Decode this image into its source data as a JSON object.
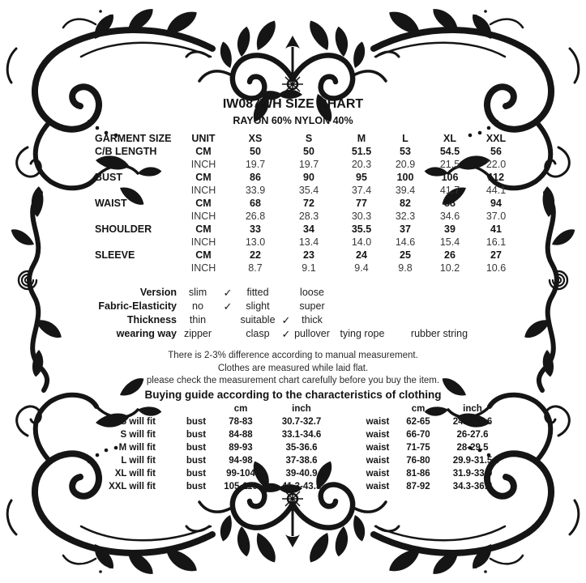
{
  "title": "IW087WH SIZE CHART",
  "subtitle": "RAYON 60% NYLON 40%",
  "size_table": {
    "columns": [
      "GARMENT SIZE",
      "UNIT",
      "XS",
      "S",
      "M",
      "L",
      "XL",
      "XXL"
    ],
    "rows": [
      {
        "label": "C/B LENGTH",
        "unit": "CM",
        "values": [
          "50",
          "50",
          "51.5",
          "53",
          "54.5",
          "56"
        ]
      },
      {
        "label": "",
        "unit": "INCH",
        "values": [
          "19.7",
          "19.7",
          "20.3",
          "20.9",
          "21.5",
          "22.0"
        ]
      },
      {
        "label": "BUST",
        "unit": "CM",
        "values": [
          "86",
          "90",
          "95",
          "100",
          "106",
          "112"
        ]
      },
      {
        "label": "",
        "unit": "INCH",
        "values": [
          "33.9",
          "35.4",
          "37.4",
          "39.4",
          "41.7",
          "44.1"
        ]
      },
      {
        "label": "WAIST",
        "unit": "CM",
        "values": [
          "68",
          "72",
          "77",
          "82",
          "88",
          "94"
        ]
      },
      {
        "label": "",
        "unit": "INCH",
        "values": [
          "26.8",
          "28.3",
          "30.3",
          "32.3",
          "34.6",
          "37.0"
        ]
      },
      {
        "label": "SHOULDER",
        "unit": "CM",
        "values": [
          "33",
          "34",
          "35.5",
          "37",
          "39",
          "41"
        ]
      },
      {
        "label": "",
        "unit": "INCH",
        "values": [
          "13.0",
          "13.4",
          "14.0",
          "14.6",
          "15.4",
          "16.1"
        ]
      },
      {
        "label": "SLEEVE",
        "unit": "CM",
        "values": [
          "22",
          "23",
          "24",
          "25",
          "26",
          "27"
        ]
      },
      {
        "label": "",
        "unit": "INCH",
        "values": [
          "8.7",
          "9.1",
          "9.4",
          "9.8",
          "10.2",
          "10.6"
        ]
      }
    ]
  },
  "characteristics": {
    "check_glyph": "✓",
    "rows": [
      {
        "label": "Version",
        "cells": [
          "slim",
          "✓",
          "fitted",
          "",
          "loose",
          "",
          ""
        ]
      },
      {
        "label": "Fabric-Elasticity",
        "cells": [
          "no",
          "✓",
          "slight",
          "",
          "super",
          "",
          ""
        ]
      },
      {
        "label": "Thickness",
        "cells": [
          "thin",
          "",
          "suitable",
          "✓",
          "thick",
          "",
          ""
        ]
      },
      {
        "label": "wearing way",
        "cells": [
          "zipper",
          "",
          "clasp",
          "✓",
          "pullover",
          "tying rope",
          "rubber string"
        ]
      }
    ]
  },
  "notes": {
    "lines": [
      "There is 2-3% difference according to manual measurement.",
      "Clothes are measured while laid flat.",
      "please check the measurement chart carefully before you buy the item."
    ],
    "heading": "Buying guide according to the characteristics of clothing"
  },
  "buying_guide": {
    "unit_cm": "cm",
    "unit_inch": "inch",
    "rows": [
      {
        "size": "XS will fit",
        "item": "bust",
        "cm": "78-83",
        "inch": "30.7-32.7",
        "item2": "waist",
        "cm2": "62-65",
        "inch2": "24.4-25.6"
      },
      {
        "size": "S will fit",
        "item": "bust",
        "cm": "84-88",
        "inch": "33.1-34.6",
        "item2": "waist",
        "cm2": "66-70",
        "inch2": "26-27.6"
      },
      {
        "size": "M will fit",
        "item": "bust",
        "cm": "89-93",
        "inch": "35-36.6",
        "item2": "waist",
        "cm2": "71-75",
        "inch2": "28-29.5"
      },
      {
        "size": "L will fit",
        "item": "bust",
        "cm": "94-98",
        "inch": "37-38.6",
        "item2": "waist",
        "cm2": "76-80",
        "inch2": "29.9-31.5"
      },
      {
        "size": "XL will fit",
        "item": "bust",
        "cm": "99-104",
        "inch": "39-40.9",
        "item2": "waist",
        "cm2": "81-86",
        "inch2": "31.9-33.9"
      },
      {
        "size": "XXL will fit",
        "item": "bust",
        "cm": "105-110",
        "inch": "41.3-43.3",
        "item2": "waist",
        "cm2": "87-92",
        "inch2": "34.3-36.2"
      }
    ]
  },
  "decor": {
    "ornament": "floral-flourish-border",
    "ink_color": "#151515",
    "background": "#ffffff"
  }
}
